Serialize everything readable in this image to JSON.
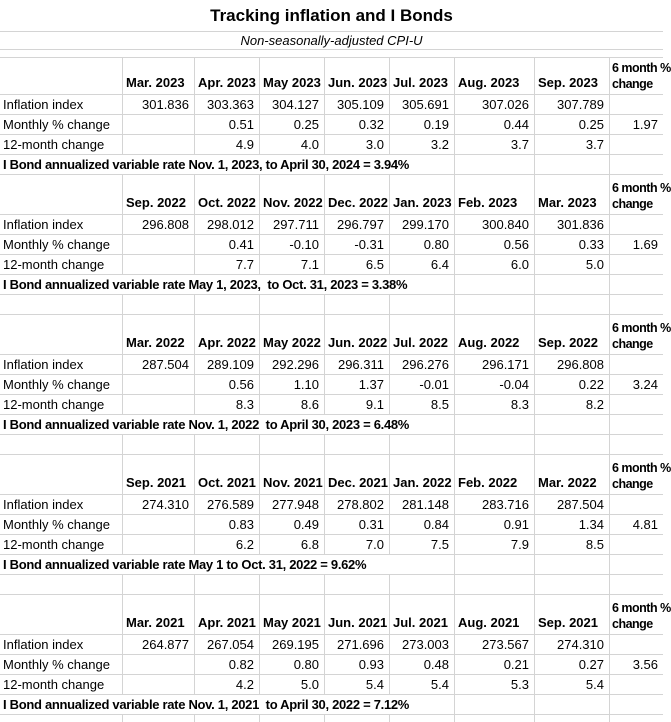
{
  "title": "Tracking inflation and I Bonds",
  "subtitle": "Non-seasonally-adjusted CPI-U",
  "colors": {
    "gridline": "#d4d4d4",
    "text": "#000000",
    "background": "#ffffff"
  },
  "row_labels": {
    "index": "Inflation index",
    "monthly": "Monthly % change",
    "twelve_month": "12-month change"
  },
  "six_month_header": {
    "line1": "6 month %",
    "line2": "change"
  },
  "sections": [
    {
      "months": [
        "Mar. 2023",
        "Apr. 2023",
        "May 2023",
        "Jun. 2023",
        "Jul. 2023",
        "Aug. 2023",
        "Sep. 2023"
      ],
      "index": [
        "301.836",
        "303.363",
        "304.127",
        "305.109",
        "305.691",
        "307.026",
        "307.789"
      ],
      "monthly": [
        "",
        "0.51",
        "0.25",
        "0.32",
        "0.19",
        "0.44",
        "0.25"
      ],
      "six_month": "1.97",
      "twelve": [
        "",
        "4.9",
        "4.0",
        "3.0",
        "3.2",
        "3.7",
        "3.7"
      ],
      "note": "I Bond annualized variable rate Nov. 1, 2023, to April 30, 2024 = 3.94%"
    },
    {
      "months": [
        "Sep. 2022",
        "Oct. 2022",
        "Nov. 2022",
        "Dec. 2022",
        "Jan. 2023",
        "Feb. 2023",
        "Mar. 2023"
      ],
      "index": [
        "296.808",
        "298.012",
        "297.711",
        "296.797",
        "299.170",
        "300.840",
        "301.836"
      ],
      "monthly": [
        "",
        "0.41",
        "-0.10",
        "-0.31",
        "0.80",
        "0.56",
        "0.33"
      ],
      "six_month": "1.69",
      "twelve": [
        "",
        "7.7",
        "7.1",
        "6.5",
        "6.4",
        "6.0",
        "5.0"
      ],
      "note": "I Bond annualized variable rate May 1, 2023,  to Oct. 31, 2023 = 3.38%"
    },
    {
      "months": [
        "Mar. 2022",
        "Apr. 2022",
        "May 2022",
        "Jun. 2022",
        "Jul. 2022",
        "Aug. 2022",
        "Sep. 2022"
      ],
      "index": [
        "287.504",
        "289.109",
        "292.296",
        "296.311",
        "296.276",
        "296.171",
        "296.808"
      ],
      "monthly": [
        "",
        "0.56",
        "1.10",
        "1.37",
        "-0.01",
        "-0.04",
        "0.22"
      ],
      "six_month": "3.24",
      "twelve": [
        "",
        "8.3",
        "8.6",
        "9.1",
        "8.5",
        "8.3",
        "8.2"
      ],
      "note": "I Bond annualized variable rate Nov. 1, 2022  to April 30, 2023 = 6.48%"
    },
    {
      "months": [
        "Sep. 2021",
        "Oct. 2021",
        "Nov. 2021",
        "Dec. 2021",
        "Jan. 2022",
        "Feb. 2022",
        "Mar. 2022"
      ],
      "index": [
        "274.310",
        "276.589",
        "277.948",
        "278.802",
        "281.148",
        "283.716",
        "287.504"
      ],
      "monthly": [
        "",
        "0.83",
        "0.49",
        "0.31",
        "0.84",
        "0.91",
        "1.34"
      ],
      "six_month": "4.81",
      "twelve": [
        "",
        "6.2",
        "6.8",
        "7.0",
        "7.5",
        "7.9",
        "8.5"
      ],
      "note": "I Bond annualized variable rate May 1 to Oct. 31, 2022 = 9.62%"
    },
    {
      "months": [
        "Mar. 2021",
        "Apr. 2021",
        "May 2021",
        "Jun. 2021",
        "Jul. 2021",
        "Aug. 2021",
        "Sep. 2021"
      ],
      "index": [
        "264.877",
        "267.054",
        "269.195",
        "271.696",
        "273.003",
        "273.567",
        "274.310"
      ],
      "monthly": [
        "",
        "0.82",
        "0.80",
        "0.93",
        "0.48",
        "0.21",
        "0.27"
      ],
      "six_month": "3.56",
      "twelve": [
        "",
        "4.2",
        "5.0",
        "5.4",
        "5.4",
        "5.3",
        "5.4"
      ],
      "note": "I Bond annualized variable rate Nov. 1, 2021  to April 30, 2022 = 7.12%"
    }
  ]
}
